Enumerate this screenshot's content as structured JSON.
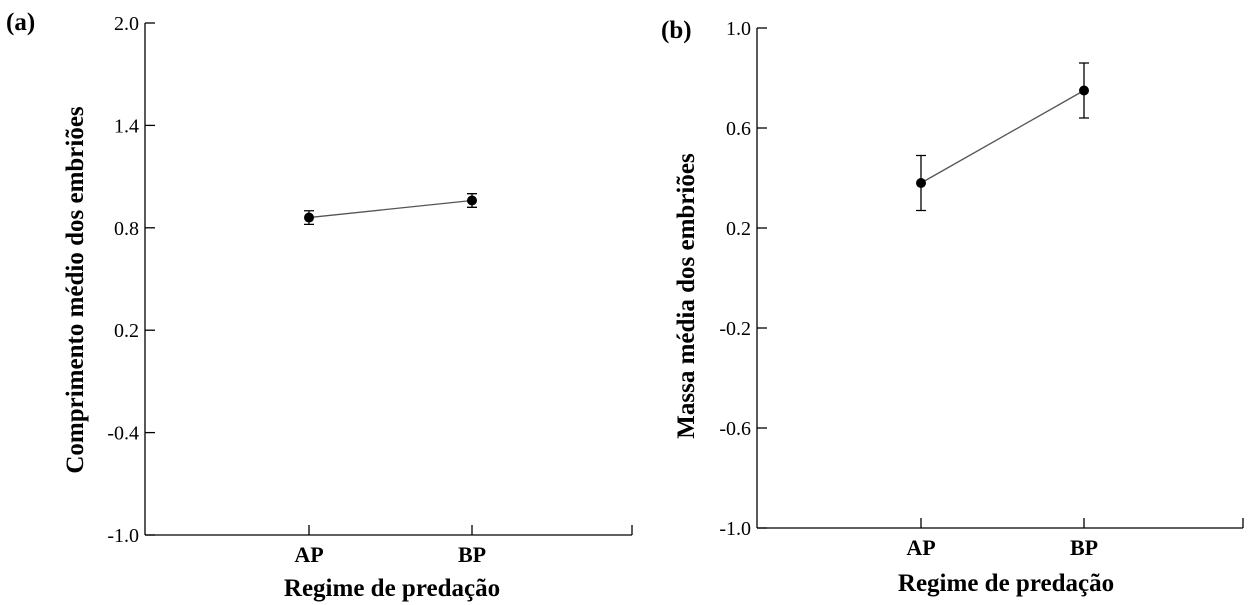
{
  "chart_data": [
    {
      "type": "line",
      "panel_label": "(a)",
      "categories": [
        "AP",
        "BP"
      ],
      "series": [
        {
          "values": [
            0.86,
            0.96
          ],
          "error": [
            0.04,
            0.04
          ]
        }
      ],
      "ylim": [
        -1.0,
        2.0
      ],
      "yticks": [
        "2.0",
        "1.4",
        "0.8",
        "0.2",
        "-0.4",
        "-1.0"
      ],
      "xlabel": "Regime de predação",
      "ylabel": "Comprimento médio dos embriões",
      "grid": false,
      "color": "#000000"
    },
    {
      "type": "line",
      "panel_label": "(b)",
      "categories": [
        "AP",
        "BP"
      ],
      "series": [
        {
          "values": [
            0.38,
            0.75
          ],
          "error": [
            0.11,
            0.11
          ]
        }
      ],
      "ylim": [
        -1.0,
        1.0
      ],
      "yticks": [
        "1.0",
        "0.6",
        "0.2",
        "-0.2",
        "-0.6",
        "-1.0"
      ],
      "xlabel": "Regime de predação",
      "ylabel": "Massa média dos embriões",
      "grid": false,
      "color": "#000000"
    }
  ]
}
